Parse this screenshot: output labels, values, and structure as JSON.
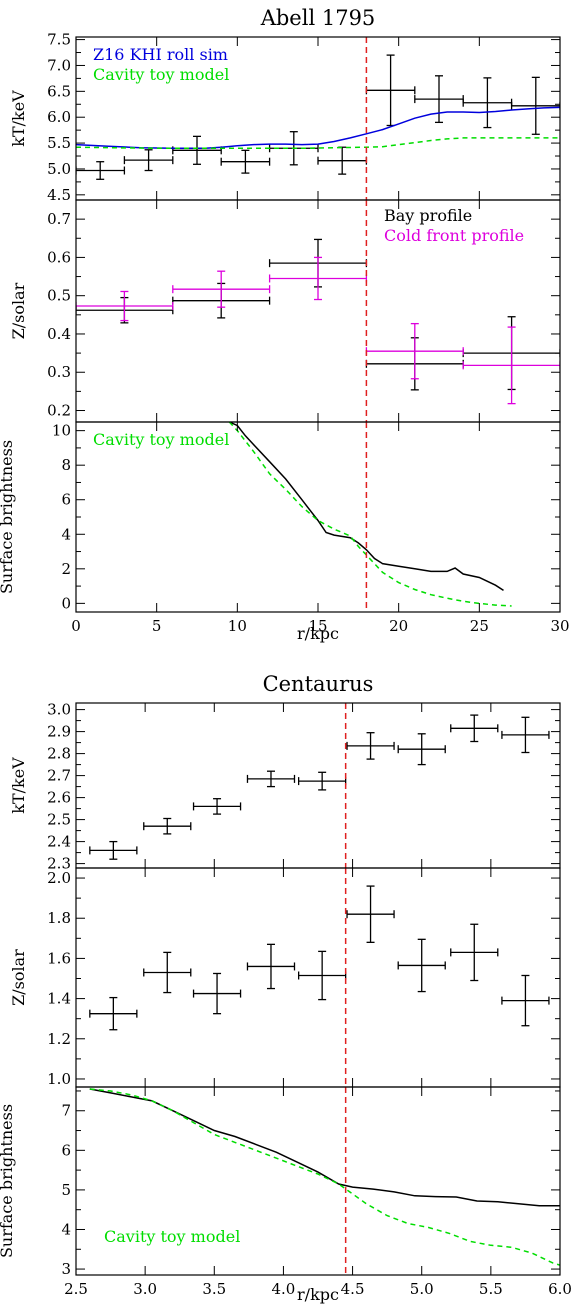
{
  "figure": {
    "top_title": "Abell 1795",
    "bottom_title": "Centaurus",
    "xlabel": "r/kpc"
  },
  "chart_data": [
    {
      "type": "line",
      "id": "a1795-kt",
      "group": "Abell 1795",
      "ylabel": "kT/keV",
      "xlim": [
        0,
        30
      ],
      "ylim": [
        4.4,
        7.55
      ],
      "yticks": [
        4.5,
        5.0,
        5.5,
        6.0,
        6.5,
        7.0,
        7.5
      ],
      "ytick_format": 1,
      "vline": 18,
      "legend_position": "top-left",
      "series": [
        {
          "name": "",
          "kind": "errorbar",
          "color": "#000000",
          "points": [
            {
              "x": 1.5,
              "xerr": 1.5,
              "y": 4.97,
              "yerr": 0.17
            },
            {
              "x": 4.5,
              "xerr": 1.5,
              "y": 5.17,
              "yerr": 0.2
            },
            {
              "x": 7.5,
              "xerr": 1.5,
              "y": 5.36,
              "yerr": 0.27
            },
            {
              "x": 10.5,
              "xerr": 1.5,
              "y": 5.14,
              "yerr": 0.22
            },
            {
              "x": 13.5,
              "xerr": 1.5,
              "y": 5.4,
              "yerr": 0.32
            },
            {
              "x": 16.5,
              "xerr": 1.5,
              "y": 5.16,
              "yerr": 0.26
            },
            {
              "x": 19.5,
              "xerr": 1.5,
              "y": 6.52,
              "yerr": 0.68
            },
            {
              "x": 22.5,
              "xerr": 1.5,
              "y": 6.35,
              "yerr": 0.45
            },
            {
              "x": 25.5,
              "xerr": 1.5,
              "y": 6.28,
              "yerr": 0.48
            },
            {
              "x": 28.5,
              "xerr": 1.5,
              "y": 6.22,
              "yerr": 0.55
            }
          ]
        },
        {
          "name": "Z16 KHI roll sim",
          "kind": "line",
          "color": "#0000dd",
          "x": [
            0,
            2,
            4,
            6,
            8,
            9,
            10,
            11,
            12,
            13,
            14,
            15,
            16,
            17,
            18,
            19,
            20,
            21,
            22,
            23,
            24,
            25,
            26,
            27,
            28,
            29,
            30
          ],
          "y": [
            5.47,
            5.44,
            5.41,
            5.4,
            5.4,
            5.42,
            5.45,
            5.47,
            5.48,
            5.48,
            5.47,
            5.48,
            5.53,
            5.6,
            5.68,
            5.76,
            5.87,
            5.98,
            6.06,
            6.1,
            6.1,
            6.09,
            6.11,
            6.14,
            6.16,
            6.18,
            6.19
          ]
        },
        {
          "name": "Cavity toy model",
          "kind": "line",
          "dashed": true,
          "color": "#00dd00",
          "x": [
            0,
            5,
            10,
            12,
            14,
            16,
            18,
            19,
            20,
            21,
            22,
            23,
            24,
            26,
            28,
            30
          ],
          "y": [
            5.42,
            5.4,
            5.4,
            5.4,
            5.4,
            5.41,
            5.42,
            5.43,
            5.47,
            5.51,
            5.55,
            5.58,
            5.6,
            5.6,
            5.6,
            5.6
          ]
        }
      ]
    },
    {
      "type": "scatter",
      "id": "a1795-z",
      "group": "Abell 1795",
      "ylabel": "Z/solar",
      "xlim": [
        0,
        30
      ],
      "ylim": [
        0.17,
        0.75
      ],
      "yticks": [
        0.2,
        0.3,
        0.4,
        0.5,
        0.6,
        0.7
      ],
      "ytick_format": 1,
      "vline": 18,
      "legend_position": "top-right",
      "series": [
        {
          "name": "Bay profile",
          "kind": "errorbar",
          "color": "#000000",
          "points": [
            {
              "x": 3,
              "xerr": 3,
              "y": 0.462,
              "yerr": 0.033
            },
            {
              "x": 9,
              "xerr": 3,
              "y": 0.487,
              "yerr": 0.045
            },
            {
              "x": 15,
              "xerr": 3,
              "y": 0.585,
              "yerr": 0.062
            },
            {
              "x": 21,
              "xerr": 3,
              "y": 0.322,
              "yerr": 0.068
            },
            {
              "x": 27,
              "xerr": 3,
              "y": 0.35,
              "yerr": 0.095
            }
          ]
        },
        {
          "name": "Cold front profile",
          "kind": "errorbar",
          "color": "#dd00dd",
          "points": [
            {
              "x": 3,
              "xerr": 3,
              "y": 0.473,
              "yerr": 0.038
            },
            {
              "x": 9,
              "xerr": 3,
              "y": 0.517,
              "yerr": 0.047
            },
            {
              "x": 15,
              "xerr": 3,
              "y": 0.545,
              "yerr": 0.055
            },
            {
              "x": 21,
              "xerr": 3,
              "y": 0.355,
              "yerr": 0.072
            },
            {
              "x": 27,
              "xerr": 3,
              "y": 0.318,
              "yerr": 0.1
            }
          ]
        }
      ]
    },
    {
      "type": "line",
      "id": "a1795-sb",
      "group": "Abell 1795",
      "ylabel": "Surface brightness",
      "xlim": [
        0,
        30
      ],
      "ylim": [
        -0.5,
        10.5
      ],
      "yticks": [
        0,
        2,
        4,
        6,
        8,
        10
      ],
      "ytick_format": 0,
      "xticks": [
        0,
        5,
        10,
        15,
        20,
        25,
        30
      ],
      "xtick_format": 0,
      "vline": 18,
      "legend_position": "top-left",
      "series": [
        {
          "name": "",
          "kind": "line",
          "color": "#000000",
          "x": [
            9.5,
            10,
            10.5,
            11,
            12,
            13,
            14,
            14.5,
            15,
            15.5,
            16,
            17,
            17.5,
            18,
            18.5,
            19,
            20,
            21,
            22,
            23,
            23.5,
            24,
            25,
            26,
            26.5
          ],
          "y": [
            10.5,
            10.3,
            9.7,
            9.2,
            8.2,
            7.2,
            6.0,
            5.4,
            4.8,
            4.1,
            3.95,
            3.8,
            3.5,
            3.1,
            2.6,
            2.3,
            2.15,
            2.0,
            1.85,
            1.85,
            2.05,
            1.7,
            1.5,
            1.05,
            0.75
          ]
        },
        {
          "name": "Cavity toy model",
          "kind": "line",
          "dashed": true,
          "color": "#00dd00",
          "x": [
            9.5,
            10,
            11,
            12,
            13,
            14,
            15,
            16,
            17,
            17.5,
            18,
            19,
            20,
            21,
            22,
            23,
            24,
            25,
            26,
            27
          ],
          "y": [
            10.5,
            10.0,
            8.8,
            7.5,
            6.6,
            5.6,
            4.8,
            4.3,
            3.9,
            3.3,
            2.8,
            1.8,
            1.2,
            0.8,
            0.5,
            0.3,
            0.12,
            0.0,
            -0.1,
            -0.15
          ]
        }
      ]
    },
    {
      "type": "scatter",
      "id": "cen-kt",
      "group": "Centaurus",
      "ylabel": "kT/keV",
      "xlim": [
        2.5,
        6.0
      ],
      "ylim": [
        2.28,
        3.03
      ],
      "yticks": [
        2.3,
        2.4,
        2.5,
        2.6,
        2.7,
        2.8,
        2.9,
        3.0
      ],
      "ytick_format": 1,
      "vline": 4.45,
      "series": [
        {
          "name": "",
          "kind": "errorbar",
          "color": "#000000",
          "points": [
            {
              "x": 2.77,
              "xerr": 0.17,
              "y": 2.36,
              "yerr": 0.04
            },
            {
              "x": 3.16,
              "xerr": 0.17,
              "y": 2.47,
              "yerr": 0.035
            },
            {
              "x": 3.52,
              "xerr": 0.17,
              "y": 2.56,
              "yerr": 0.035
            },
            {
              "x": 3.91,
              "xerr": 0.17,
              "y": 2.685,
              "yerr": 0.035
            },
            {
              "x": 4.28,
              "xerr": 0.17,
              "y": 2.675,
              "yerr": 0.04
            },
            {
              "x": 4.63,
              "xerr": 0.17,
              "y": 2.835,
              "yerr": 0.06
            },
            {
              "x": 5.0,
              "xerr": 0.17,
              "y": 2.82,
              "yerr": 0.07
            },
            {
              "x": 5.38,
              "xerr": 0.17,
              "y": 2.915,
              "yerr": 0.06
            },
            {
              "x": 5.75,
              "xerr": 0.17,
              "y": 2.885,
              "yerr": 0.08
            }
          ]
        }
      ]
    },
    {
      "type": "scatter",
      "id": "cen-z",
      "group": "Centaurus",
      "ylabel": "Z/solar",
      "xlim": [
        2.5,
        6.0
      ],
      "ylim": [
        0.96,
        2.05
      ],
      "yticks": [
        1.0,
        1.2,
        1.4,
        1.6,
        1.8,
        2.0
      ],
      "ytick_format": 1,
      "vline": 4.45,
      "series": [
        {
          "name": "",
          "kind": "errorbar",
          "color": "#000000",
          "points": [
            {
              "x": 2.77,
              "xerr": 0.17,
              "y": 1.325,
              "yerr": 0.08
            },
            {
              "x": 3.16,
              "xerr": 0.17,
              "y": 1.53,
              "yerr": 0.1
            },
            {
              "x": 3.52,
              "xerr": 0.17,
              "y": 1.425,
              "yerr": 0.1
            },
            {
              "x": 3.91,
              "xerr": 0.17,
              "y": 1.56,
              "yerr": 0.11
            },
            {
              "x": 4.28,
              "xerr": 0.17,
              "y": 1.515,
              "yerr": 0.12
            },
            {
              "x": 4.63,
              "xerr": 0.17,
              "y": 1.82,
              "yerr": 0.14
            },
            {
              "x": 5.0,
              "xerr": 0.17,
              "y": 1.565,
              "yerr": 0.13
            },
            {
              "x": 5.38,
              "xerr": 0.17,
              "y": 1.63,
              "yerr": 0.14
            },
            {
              "x": 5.75,
              "xerr": 0.17,
              "y": 1.39,
              "yerr": 0.125
            }
          ]
        }
      ]
    },
    {
      "type": "line",
      "id": "cen-sb",
      "group": "Centaurus",
      "ylabel": "Surface brightness",
      "xlim": [
        2.5,
        6.0
      ],
      "ylim": [
        2.85,
        7.6
      ],
      "yticks": [
        3,
        4,
        5,
        6,
        7
      ],
      "ytick_format": 0,
      "xticks": [
        2.5,
        3.0,
        3.5,
        4.0,
        4.5,
        5.0,
        5.5,
        6.0
      ],
      "xtick_format": 1,
      "vline": 4.45,
      "legend_position": "bottom-left",
      "series": [
        {
          "name": "",
          "kind": "line",
          "color": "#000000",
          "x": [
            2.6,
            2.75,
            2.9,
            3.05,
            3.2,
            3.35,
            3.5,
            3.65,
            3.8,
            3.95,
            4.1,
            4.25,
            4.4,
            4.5,
            4.65,
            4.8,
            4.95,
            5.1,
            5.25,
            5.4,
            5.55,
            5.7,
            5.85,
            6.0
          ],
          "y": [
            7.55,
            7.45,
            7.35,
            7.25,
            7.0,
            6.75,
            6.5,
            6.35,
            6.15,
            5.95,
            5.7,
            5.45,
            5.15,
            5.07,
            5.02,
            4.95,
            4.85,
            4.83,
            4.82,
            4.72,
            4.7,
            4.65,
            4.6,
            4.6
          ]
        },
        {
          "name": "Cavity toy model",
          "kind": "line",
          "dashed": true,
          "color": "#00dd00",
          "x": [
            2.6,
            2.75,
            2.9,
            3.05,
            3.2,
            3.35,
            3.5,
            3.65,
            3.8,
            3.95,
            4.1,
            4.25,
            4.4,
            4.5,
            4.6,
            4.75,
            4.9,
            5.05,
            5.2,
            5.35,
            5.5,
            5.65,
            5.8,
            5.95,
            6.0
          ],
          "y": [
            7.55,
            7.5,
            7.4,
            7.25,
            7.0,
            6.7,
            6.4,
            6.2,
            6.0,
            5.8,
            5.6,
            5.4,
            5.15,
            4.9,
            4.65,
            4.35,
            4.15,
            4.05,
            3.9,
            3.7,
            3.6,
            3.55,
            3.4,
            3.15,
            3.1
          ]
        }
      ]
    }
  ]
}
